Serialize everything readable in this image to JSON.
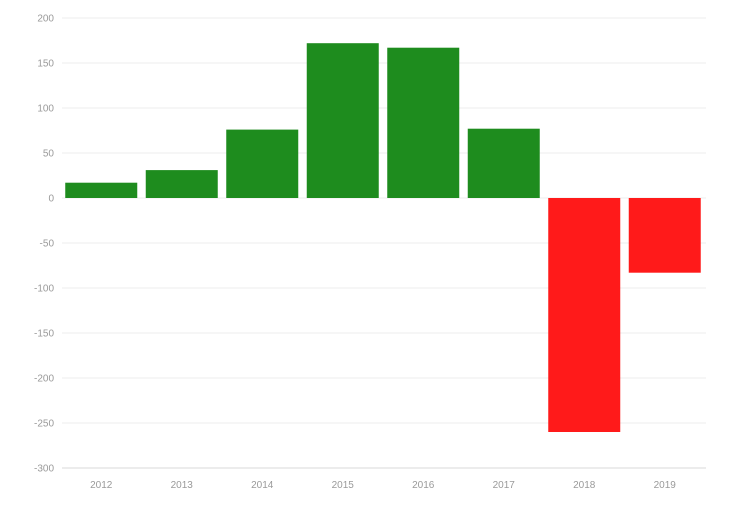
{
  "chart_data": {
    "type": "bar",
    "categories": [
      "2012",
      "2013",
      "2014",
      "2015",
      "2016",
      "2017",
      "2018",
      "2019"
    ],
    "values": [
      17,
      31,
      76,
      172,
      167,
      77,
      -260,
      -83
    ],
    "ylim": [
      -300,
      200
    ],
    "yticks": [
      200,
      150,
      100,
      50,
      0,
      -50,
      -100,
      -150,
      -200,
      -250,
      -300
    ],
    "ytick_labels": [
      "200",
      "150",
      "100",
      "50",
      "0",
      "-50",
      "-100",
      "-150",
      "-200",
      "-250",
      "-300"
    ],
    "grid": true,
    "colors": {
      "positive": "#1e8c1e",
      "negative": "#ff1a1a"
    }
  }
}
